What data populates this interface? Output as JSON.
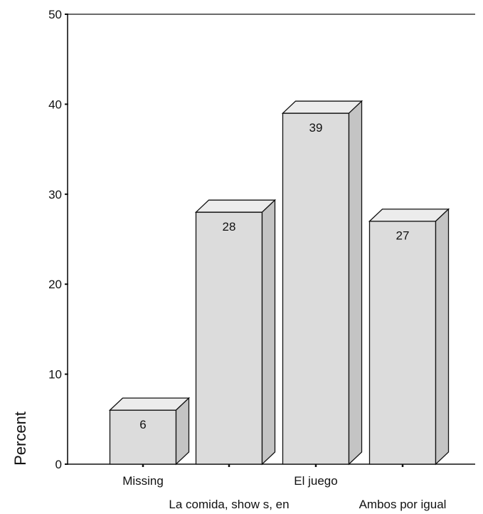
{
  "chart_data": {
    "type": "bar",
    "style": "3d",
    "title": "",
    "xlabel": "",
    "ylabel": "Percent",
    "ylim": [
      0,
      50
    ],
    "yticks": [
      0,
      10,
      20,
      30,
      40,
      50
    ],
    "grid": false,
    "legend": "none",
    "categories": [
      "Missing",
      "La comida, show s, en",
      "El juego",
      "Ambos por igual"
    ],
    "values": [
      6,
      28,
      39,
      27
    ],
    "data_labels": [
      "6",
      "28",
      "39",
      "27"
    ],
    "category_label_rows": [
      "top",
      "bottom",
      "top",
      "bottom"
    ],
    "colors": {
      "bar_face": "#dcdcdc",
      "bar_top": "#ececec",
      "bar_side": "#c4c4c4",
      "outline": "#111111"
    }
  }
}
